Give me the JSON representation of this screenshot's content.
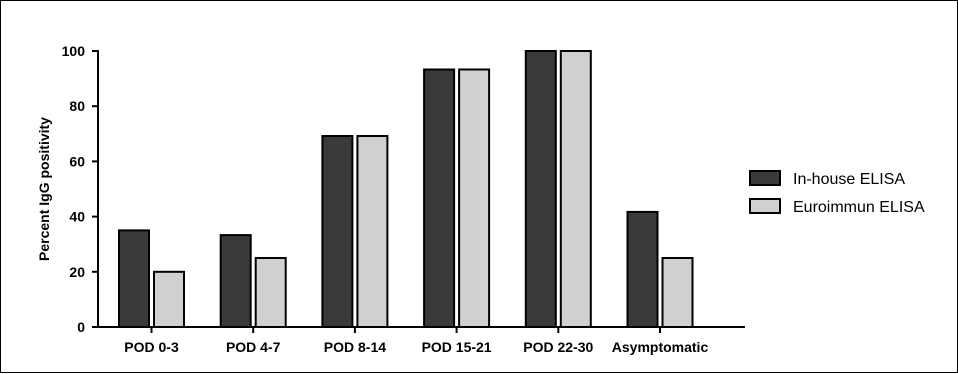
{
  "chart_data": {
    "type": "bar",
    "title": "",
    "xlabel": "",
    "ylabel": "Percent IgG positivity",
    "ylim": [
      0,
      100
    ],
    "yticks": [
      "0",
      "20",
      "40",
      "60",
      "80",
      "100"
    ],
    "categories": [
      "POD 0-3",
      "POD 4-7",
      "POD 8-14",
      "POD 15-21",
      "POD 22-30",
      "Asymptomatic"
    ],
    "series": [
      {
        "name": "In-house ELISA",
        "values": [
          35,
          33.3,
          69.2,
          93.3,
          100,
          41.7
        ],
        "color": "#3a3a3a"
      },
      {
        "name": "Euroimmun ELISA",
        "values": [
          20,
          25,
          69.2,
          93.3,
          100,
          25
        ],
        "color": "#d0d0d0"
      }
    ],
    "grid": false,
    "legend_position": "right"
  }
}
